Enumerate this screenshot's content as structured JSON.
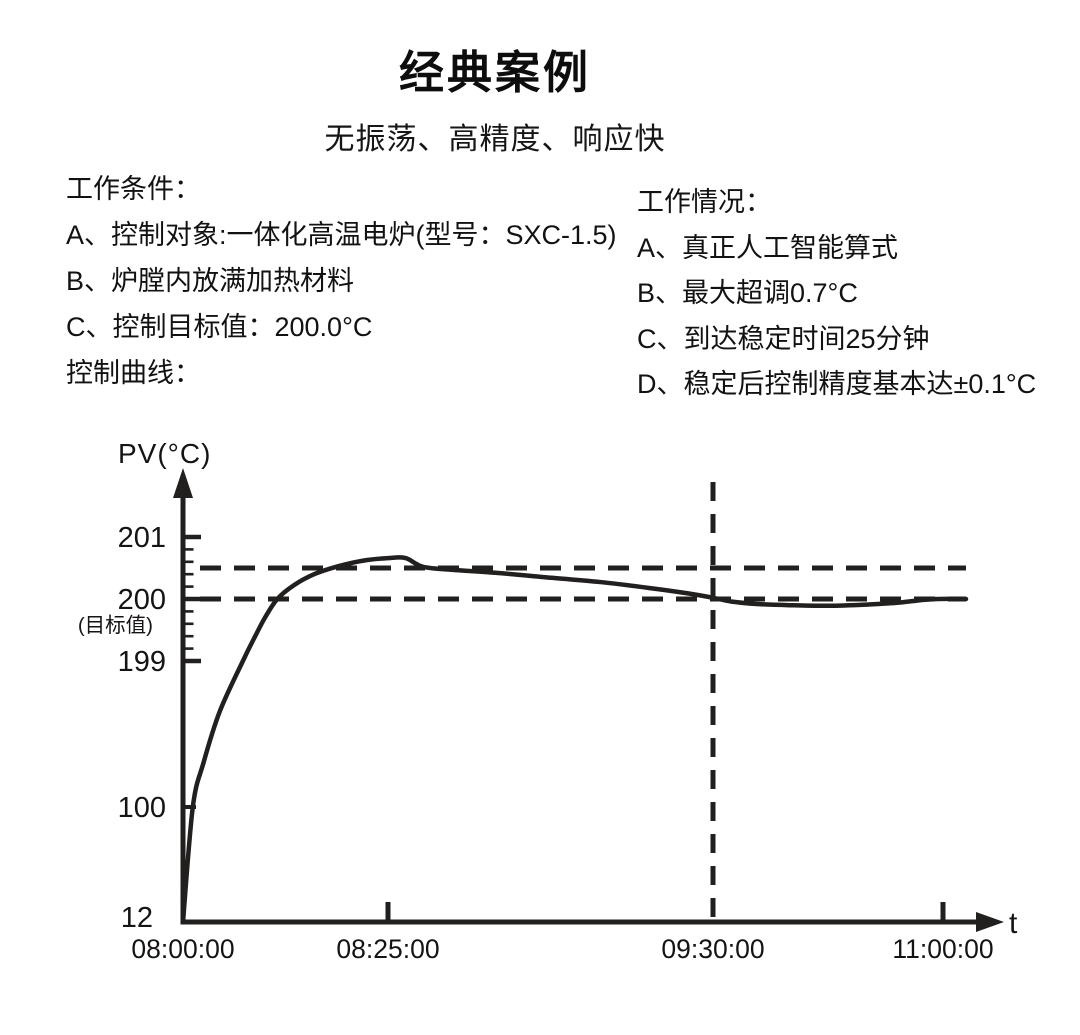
{
  "title": "经典案例",
  "subtitle": "无振荡、高精度、响应快",
  "conditions": {
    "heading": "工作条件：",
    "items": [
      "A、控制对象:一体化高温电炉(型号：SXC-1.5)",
      "B、炉膛内放满加热材料",
      "C、控制目标值：200.0°C"
    ],
    "footer": "控制曲线："
  },
  "performance": {
    "heading": "工作情况：",
    "items": [
      "A、真正人工智能算式",
      "B、最大超调0.7°C",
      "C、到达稳定时间25分钟",
      "D、稳定后控制精度基本达±0.1°C"
    ]
  },
  "chart_data": {
    "type": "line",
    "title": "控制曲线",
    "ylabel": "PV(°C)",
    "xlabel": "t",
    "axis_broken": true,
    "grid": false,
    "legend": "none",
    "y_ticks": [
      {
        "value": 201,
        "label": "201",
        "tick": "major"
      },
      {
        "value": 200,
        "label": "200",
        "sublabel": "(目标值)",
        "tick": "major"
      },
      {
        "value": 199,
        "label": "199",
        "tick": "major"
      },
      {
        "value": 100,
        "label": "100",
        "tick": "short"
      },
      {
        "value": 12,
        "label": "12",
        "tick": "none"
      }
    ],
    "x_ticks": [
      {
        "minutes": 0,
        "label": "08:00:00",
        "tick": false
      },
      {
        "minutes": 25,
        "label": "08:25:00",
        "tick": true
      },
      {
        "minutes": 90,
        "label": "09:30:00",
        "tick": false
      },
      {
        "minutes": 180,
        "label": "11:00:00",
        "tick": true
      }
    ],
    "minor_tick_step_c": 0.2,
    "dashed_horizontal_values": [
      200.5,
      200
    ],
    "dashed_vertical_minutes": 90,
    "target_value_c": 200.0,
    "start_value_c": 12,
    "max_overshoot_c": 0.7,
    "series": [
      {
        "name": "PV",
        "points_minutes_degc": [
          [
            0,
            12
          ],
          [
            1.2,
            100
          ],
          [
            2.5,
            130
          ],
          [
            4.5,
            165
          ],
          [
            7.3,
            199
          ],
          [
            8.8,
            199.4
          ],
          [
            10,
            199.7
          ],
          [
            11.5,
            200
          ],
          [
            13.5,
            200.22
          ],
          [
            16,
            200.4
          ],
          [
            19,
            200.53
          ],
          [
            22,
            200.62
          ],
          [
            25,
            200.66
          ],
          [
            28.5,
            200.66
          ],
          [
            32,
            200.52
          ],
          [
            38,
            200.47
          ],
          [
            47,
            200.42
          ],
          [
            58,
            200.34
          ],
          [
            68,
            200.27
          ],
          [
            78,
            200.17
          ],
          [
            85,
            200.09
          ],
          [
            90,
            200.02
          ],
          [
            97,
            199.96
          ],
          [
            107,
            199.92
          ],
          [
            120,
            199.9
          ],
          [
            135,
            199.89
          ],
          [
            150,
            199.91
          ],
          [
            162,
            199.94
          ],
          [
            171,
            199.98
          ],
          [
            178,
            200
          ],
          [
            189,
            200
          ]
        ]
      }
    ],
    "colors": {
      "line": "#221f1f",
      "text": "#161314"
    }
  }
}
